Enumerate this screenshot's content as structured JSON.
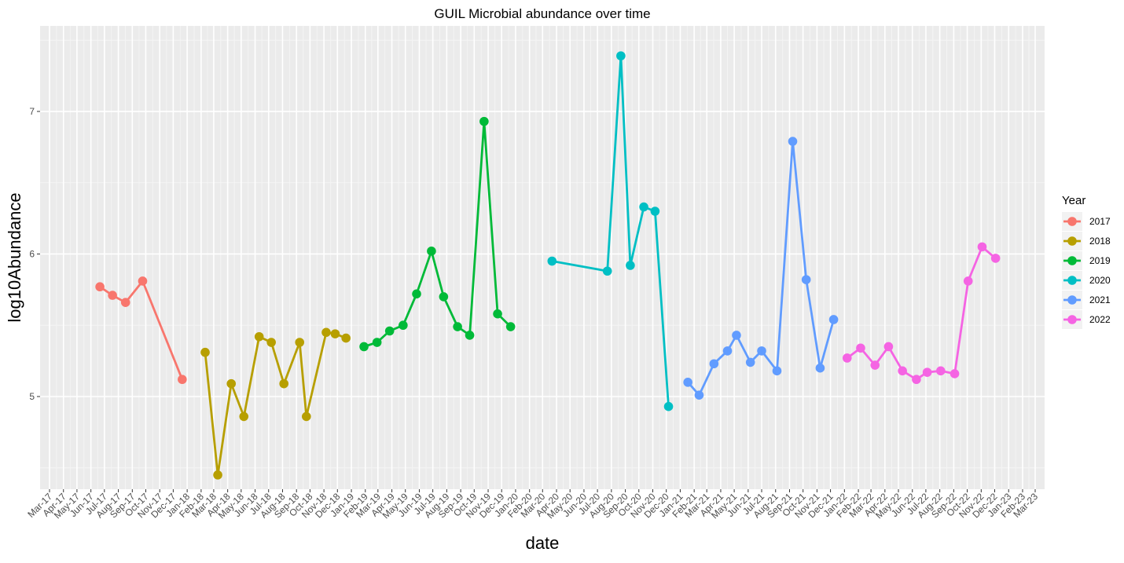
{
  "chart_data": {
    "type": "line",
    "title": "GUIL Microbial abundance over time",
    "xlabel": "date",
    "ylabel": "log10Abundance",
    "ylim": [
      4.35,
      7.6
    ],
    "xlim": [
      "2017-03-01",
      "2023-03-01"
    ],
    "yticks": [
      5,
      6,
      7
    ],
    "xticks": [
      "Mar-17",
      "Apr-17",
      "May-17",
      "Jun-17",
      "Jul-17",
      "Aug-17",
      "Sep-17",
      "Oct-17",
      "Nov-17",
      "Dec-17",
      "Jan-18",
      "Feb-18",
      "Mar-18",
      "Apr-18",
      "May-18",
      "Jun-18",
      "Jul-18",
      "Aug-18",
      "Sep-18",
      "Oct-18",
      "Nov-18",
      "Dec-18",
      "Jan-19",
      "Feb-19",
      "Mar-19",
      "Apr-19",
      "May-19",
      "Jun-19",
      "Jul-19",
      "Aug-19",
      "Sep-19",
      "Oct-19",
      "Nov-19",
      "Dec-19",
      "Jan-20",
      "Feb-20",
      "Mar-20",
      "Apr-20",
      "May-20",
      "Jun-20",
      "Jul-20",
      "Aug-20",
      "Sep-20",
      "Oct-20",
      "Nov-20",
      "Dec-20",
      "Jan-21",
      "Feb-21",
      "Mar-21",
      "Apr-21",
      "May-21",
      "Jun-21",
      "Jul-21",
      "Aug-21",
      "Sep-21",
      "Oct-21",
      "Nov-21",
      "Dec-21",
      "Jan-22",
      "Feb-22",
      "Mar-22",
      "Apr-22",
      "May-22",
      "Jun-22",
      "Jul-22",
      "Aug-22",
      "Sep-22",
      "Oct-22",
      "Nov-22",
      "Dec-22",
      "Jan-23",
      "Feb-23",
      "Mar-23"
    ],
    "grid": true,
    "legend": {
      "title": "Year",
      "position": "right"
    },
    "series": [
      {
        "name": "2017",
        "color": "#F8766D",
        "points": [
          [
            "2017-06-21",
            5.77
          ],
          [
            "2017-07-19",
            5.71
          ],
          [
            "2017-08-17",
            5.66
          ],
          [
            "2017-09-24",
            5.81
          ],
          [
            "2017-12-21",
            5.12
          ]
        ]
      },
      {
        "name": "2018",
        "color": "#B79F00",
        "points": [
          [
            "2018-02-10",
            5.31
          ],
          [
            "2018-03-10",
            4.45
          ],
          [
            "2018-04-09",
            5.09
          ],
          [
            "2018-05-07",
            4.86
          ],
          [
            "2018-06-10",
            5.42
          ],
          [
            "2018-07-07",
            5.38
          ],
          [
            "2018-08-04",
            5.09
          ],
          [
            "2018-09-08",
            5.38
          ],
          [
            "2018-09-23",
            4.86
          ],
          [
            "2018-11-06",
            5.45
          ],
          [
            "2018-11-26",
            5.44
          ],
          [
            "2018-12-20",
            5.41
          ]
        ]
      },
      {
        "name": "2019",
        "color": "#00BA38",
        "points": [
          [
            "2019-01-29",
            5.35
          ],
          [
            "2019-02-27",
            5.38
          ],
          [
            "2019-03-27",
            5.46
          ],
          [
            "2019-04-26",
            5.5
          ],
          [
            "2019-05-26",
            5.72
          ],
          [
            "2019-06-28",
            6.02
          ],
          [
            "2019-07-25",
            5.7
          ],
          [
            "2019-08-25",
            5.49
          ],
          [
            "2019-09-21",
            5.43
          ],
          [
            "2019-10-23",
            6.93
          ],
          [
            "2019-11-22",
            5.58
          ],
          [
            "2019-12-21",
            5.49
          ]
        ]
      },
      {
        "name": "2020",
        "color": "#00BFC4",
        "points": [
          [
            "2020-03-22",
            5.95
          ],
          [
            "2020-07-23",
            5.88
          ],
          [
            "2020-08-22",
            7.39
          ],
          [
            "2020-09-12",
            5.92
          ],
          [
            "2020-10-12",
            6.33
          ],
          [
            "2020-11-06",
            6.3
          ],
          [
            "2020-12-06",
            4.93
          ]
        ]
      },
      {
        "name": "2021",
        "color": "#619CFF",
        "points": [
          [
            "2021-01-18",
            5.1
          ],
          [
            "2021-02-12",
            5.01
          ],
          [
            "2021-03-17",
            5.23
          ],
          [
            "2021-04-16",
            5.32
          ],
          [
            "2021-05-06",
            5.43
          ],
          [
            "2021-06-06",
            5.24
          ],
          [
            "2021-07-01",
            5.32
          ],
          [
            "2021-08-04",
            5.18
          ],
          [
            "2021-09-08",
            6.79
          ],
          [
            "2021-10-08",
            5.82
          ],
          [
            "2021-11-08",
            5.2
          ],
          [
            "2021-12-08",
            5.54
          ]
        ]
      },
      {
        "name": "2022",
        "color": "#F564E3",
        "points": [
          [
            "2022-01-07",
            5.27
          ],
          [
            "2022-02-06",
            5.34
          ],
          [
            "2022-03-10",
            5.22
          ],
          [
            "2022-04-09",
            5.35
          ],
          [
            "2022-05-10",
            5.18
          ],
          [
            "2022-06-10",
            5.12
          ],
          [
            "2022-07-04",
            5.17
          ],
          [
            "2022-08-03",
            5.18
          ],
          [
            "2022-09-03",
            5.16
          ],
          [
            "2022-10-03",
            5.81
          ],
          [
            "2022-11-03",
            6.05
          ],
          [
            "2022-12-03",
            5.97
          ]
        ]
      }
    ]
  }
}
